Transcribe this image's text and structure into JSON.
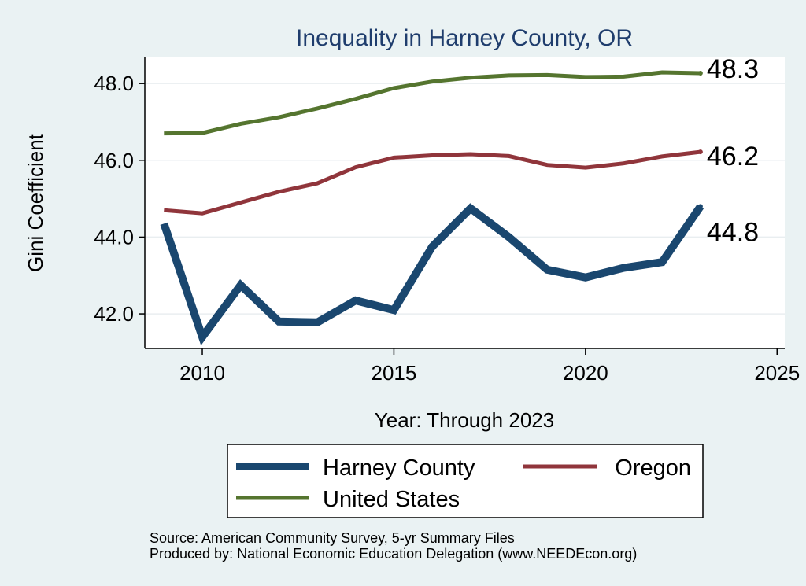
{
  "chart_data": {
    "type": "line",
    "title": "Inequality in Harney County, OR",
    "xlabel": "Year: Through 2023",
    "ylabel": "Gini Coefficient",
    "xlim": [
      2008.5,
      2025.2
    ],
    "ylim": [
      41.1,
      48.7
    ],
    "xticks": [
      2010,
      2015,
      2020,
      2025
    ],
    "xtick_labels": [
      "2010",
      "2015",
      "2020",
      "2025"
    ],
    "yticks": [
      42,
      44,
      46,
      48
    ],
    "ytick_labels": [
      "42.0",
      "44.0",
      "46.0",
      "48.0"
    ],
    "grid": true,
    "x": [
      2009,
      2010,
      2011,
      2012,
      2013,
      2014,
      2015,
      2016,
      2017,
      2018,
      2019,
      2020,
      2021,
      2022,
      2023
    ],
    "series": [
      {
        "name": "Harney County",
        "color": "#1a476f",
        "values": [
          44.35,
          41.4,
          42.75,
          41.8,
          41.78,
          42.35,
          42.1,
          43.75,
          44.75,
          44.0,
          43.15,
          42.95,
          43.2,
          43.35,
          44.8
        ],
        "end_label": "44.8"
      },
      {
        "name": "Oregon",
        "color": "#90353b",
        "values": [
          44.7,
          44.62,
          44.9,
          45.18,
          45.4,
          45.82,
          46.07,
          46.13,
          46.16,
          46.11,
          45.88,
          45.81,
          45.92,
          46.1,
          46.22
        ],
        "end_label": "46.2"
      },
      {
        "name": "United States",
        "color": "#55752f",
        "values": [
          46.7,
          46.71,
          46.95,
          47.12,
          47.35,
          47.6,
          47.88,
          48.05,
          48.15,
          48.21,
          48.22,
          48.17,
          48.18,
          48.29,
          48.27
        ],
        "end_label": "48.3"
      }
    ],
    "legend": {
      "entries": [
        "Harney County",
        "Oregon",
        "United States"
      ],
      "position": "bottom"
    },
    "source_note": "Source: American Community Survey, 5-yr Summary Files",
    "producer_note": "Produced by: National Economic Education Delegation (www.NEEDEcon.org)"
  }
}
